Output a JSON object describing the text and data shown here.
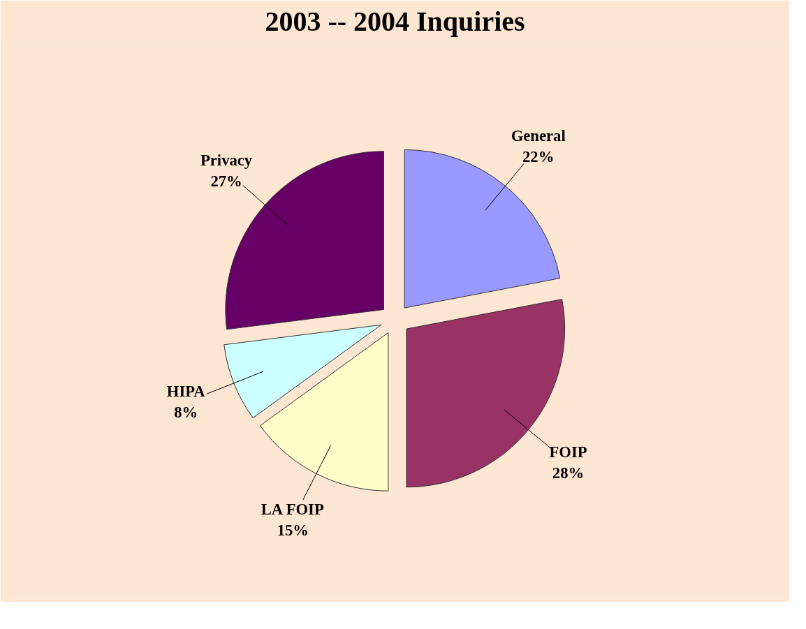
{
  "chart_data": {
    "type": "pie",
    "title": "2003 -- 2004 Inquiries",
    "categories": [
      "General",
      "FOIP",
      "LA FOIP",
      "HIPA",
      "Privacy"
    ],
    "values": [
      22,
      28,
      15,
      8,
      27
    ],
    "value_labels": [
      "22%",
      "28%",
      "15%",
      "8%",
      "27%"
    ],
    "colors": [
      "#9999ff",
      "#993366",
      "#ffffcc",
      "#ccffff",
      "#660066"
    ]
  }
}
